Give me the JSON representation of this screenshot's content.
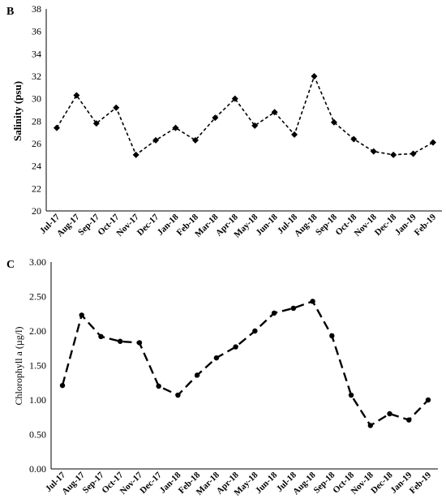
{
  "chart_data": [
    {
      "panel": "B",
      "type": "line",
      "ylabel": "Salinity (psu)",
      "xlabel": "",
      "ylim": [
        20,
        38
      ],
      "yticks": [
        "20",
        "22",
        "24",
        "26",
        "28",
        "30",
        "32",
        "34",
        "36",
        "38"
      ],
      "categories": [
        "Jul-17",
        "Aug-17",
        "Sep-17",
        "Oct-17",
        "Nov-17",
        "Dec-17",
        "Jan-18",
        "Feb-18",
        "Mar-18",
        "Apr-18",
        "May-18",
        "Jun-18",
        "Jul-18",
        "Aug-18",
        "Sep-18",
        "Oct-18",
        "Nov-18",
        "Dec-18",
        "Jan-19",
        "Feb-19"
      ],
      "values": [
        27.4,
        30.3,
        27.8,
        29.2,
        25.0,
        26.3,
        27.4,
        26.3,
        28.3,
        30.0,
        27.6,
        28.8,
        26.8,
        32.0,
        27.9,
        26.4,
        25.3,
        25.0,
        25.1,
        26.1
      ],
      "marker": "diamond",
      "line_style": "dashed",
      "grid": false
    },
    {
      "panel": "C",
      "type": "line",
      "ylabel": "Chlorophyll a (µg/l)",
      "xlabel": "",
      "ylim": [
        0,
        3
      ],
      "yticks": [
        "0.00",
        "0.50",
        "1.00",
        "1.50",
        "2.00",
        "2.50",
        "3.00"
      ],
      "categories": [
        "Jul-17",
        "Aug-17",
        "Sep-17",
        "Oct-17",
        "Nov-17",
        "Dec-17",
        "Jan-18",
        "Feb-18",
        "Mar-18",
        "Apr-18",
        "May-18",
        "Jun-18",
        "Jul-18",
        "Aug-18",
        "Sep-18",
        "Oct-18",
        "Nov-18",
        "Dec-18",
        "Jan-19",
        "Feb-19"
      ],
      "values": [
        1.21,
        2.23,
        1.92,
        1.85,
        1.83,
        1.2,
        1.07,
        1.36,
        1.61,
        1.77,
        2.0,
        2.26,
        2.33,
        2.43,
        1.93,
        1.07,
        0.63,
        0.8,
        0.71,
        1.0
      ],
      "marker": "circle",
      "line_style": "long-dash",
      "grid": false
    }
  ]
}
